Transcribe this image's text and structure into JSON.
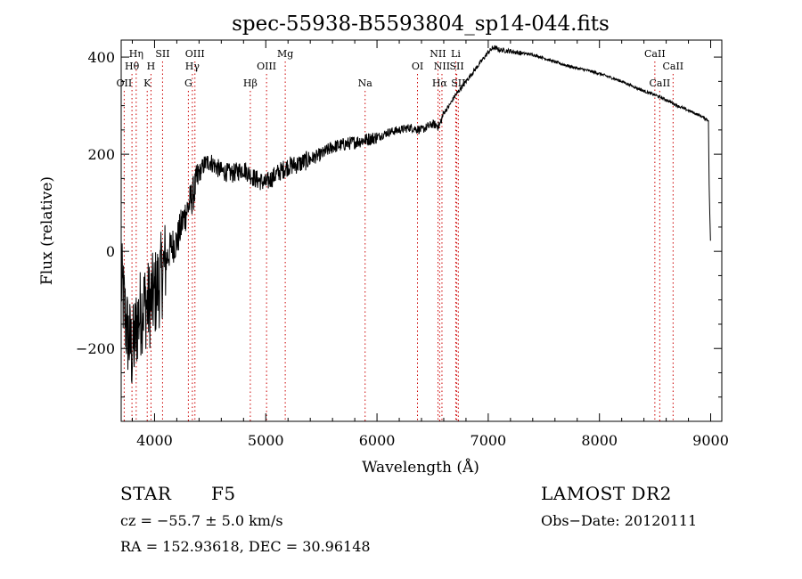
{
  "chart_data": {
    "type": "line",
    "title": "spec-55938-B5593804_sp14-044.fits",
    "xlabel": "Wavelength (Å)",
    "ylabel": "Flux (relative)",
    "xlim": [
      3700,
      9100
    ],
    "ylim": [
      -350,
      435
    ],
    "xticks": [
      4000,
      5000,
      6000,
      7000,
      8000,
      9000
    ],
    "xtick_labels": [
      "4000",
      "5000",
      "6000",
      "7000",
      "8000",
      "9000"
    ],
    "yticks": [
      -200,
      0,
      200,
      400
    ],
    "ytick_labels": [
      "−200",
      "0",
      "200",
      "400"
    ],
    "grid": false,
    "line_color": "#000000",
    "marker_color": "#cc0000",
    "series": [
      {
        "x": [
          3700,
          3750,
          3800,
          3850,
          3900,
          3950,
          4000,
          4050,
          4100,
          4150,
          4200,
          4250,
          4300,
          4350,
          4400,
          4450,
          4500,
          4600,
          4700,
          4800,
          4900,
          5000,
          5100,
          5200,
          5300,
          5400,
          5500,
          5600,
          5700,
          5800,
          5900,
          6000,
          6100,
          6200,
          6300,
          6400,
          6500,
          6560,
          6600,
          6650,
          6700,
          6750,
          6800,
          6900,
          7000,
          7050,
          7100,
          7200,
          7300,
          7400,
          7500,
          7600,
          7700,
          7800,
          7900,
          8000,
          8100,
          8200,
          8300,
          8400,
          8500,
          8600,
          8700,
          8800,
          8900,
          8980,
          8985,
          9000
        ],
        "y": [
          -60,
          -160,
          -210,
          -140,
          -110,
          -110,
          -90,
          -60,
          -20,
          10,
          20,
          60,
          90,
          120,
          160,
          180,
          185,
          165,
          160,
          170,
          150,
          140,
          160,
          175,
          180,
          190,
          200,
          215,
          220,
          225,
          230,
          235,
          245,
          250,
          255,
          250,
          262,
          258,
          285,
          300,
          320,
          335,
          350,
          380,
          410,
          420,
          415,
          412,
          408,
          405,
          398,
          390,
          383,
          377,
          372,
          366,
          358,
          350,
          340,
          330,
          322,
          312,
          300,
          290,
          280,
          270,
          150,
          0
        ]
      }
    ],
    "lines": [
      {
        "label": "Hη",
        "x": 3835,
        "row": 0
      },
      {
        "label": "Hθ",
        "x": 3797,
        "row": 1
      },
      {
        "label": "OII",
        "x": 3727,
        "row": 2
      },
      {
        "label": "H",
        "x": 3968,
        "row": 1
      },
      {
        "label": "K",
        "x": 3934,
        "row": 2
      },
      {
        "label": "SII",
        "x": 4072,
        "row": 0
      },
      {
        "label": "OIII",
        "x": 4363,
        "row": 0
      },
      {
        "label": "Hγ",
        "x": 4340,
        "row": 1
      },
      {
        "label": "G",
        "x": 4304,
        "row": 2
      },
      {
        "label": "Hβ",
        "x": 4861,
        "row": 2
      },
      {
        "label": "OIII",
        "x": 5007,
        "row": 1
      },
      {
        "label": "Mg",
        "x": 5175,
        "row": 0
      },
      {
        "label": "Na",
        "x": 5893,
        "row": 2
      },
      {
        "label": "OI",
        "x": 6364,
        "row": 1
      },
      {
        "label": "NII",
        "x": 6548,
        "row": 0
      },
      {
        "label": "Li",
        "x": 6708,
        "row": 0
      },
      {
        "label": "NII",
        "x": 6584,
        "row": 1
      },
      {
        "label": "SII",
        "x": 6717,
        "row": 1
      },
      {
        "label": "Hα",
        "x": 6563,
        "row": 2
      },
      {
        "label": "SII",
        "x": 6731,
        "row": 2
      },
      {
        "label": "CaII",
        "x": 8498,
        "row": 0
      },
      {
        "label": "CaII",
        "x": 8662,
        "row": 1
      },
      {
        "label": "CaII",
        "x": 8542,
        "row": 2
      }
    ]
  },
  "info": {
    "object_class": "STAR",
    "subclass": "F5",
    "survey": "LAMOST DR2",
    "redshift": "cz = −55.7 ± 5.0 km/s",
    "obs_date": "Obs−Date: 20120111",
    "coords": "RA = 152.93618, DEC =  30.96148"
  }
}
